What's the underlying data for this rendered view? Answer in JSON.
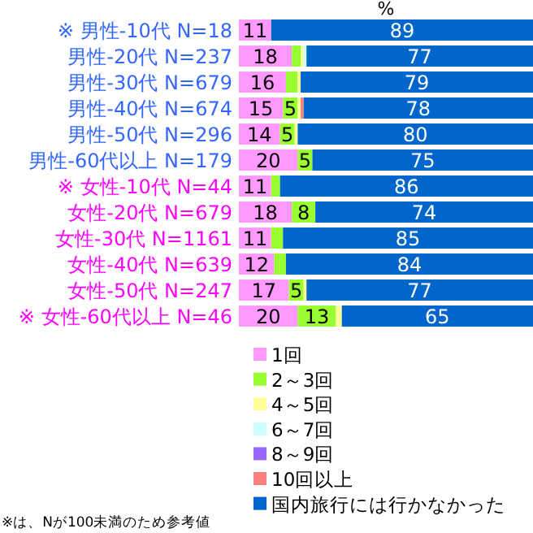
{
  "chart_data": {
    "type": "bar",
    "orientation": "horizontal",
    "stacked": true,
    "xlabel": "%",
    "xlim": [
      0,
      100
    ],
    "tick_labels": "y",
    "legend": "bottom right",
    "categories": [
      "※ 男性-10代 N=18",
      "男性-20代 N=237",
      "男性-30代 N=679",
      "男性-40代 N=674",
      "男性-50代 N=296",
      "男性-60代以上 N=179",
      "※ 女性-10代 N=44",
      "女性-20代 N=679",
      "女性-30代 N=1161",
      "女性-40代 N=639",
      "女性-50代 N=247",
      "※ 女性-60代以上 N=46"
    ],
    "series": [
      {
        "name": "1回",
        "color": "#ff99ff",
        "values": [
          11,
          18,
          16,
          15,
          14,
          20,
          11,
          18,
          11,
          12,
          17,
          20
        ],
        "value_labels": [
          "11",
          "18",
          "16",
          "15",
          "14",
          "20",
          "11",
          "18",
          "11",
          "12",
          "17",
          "20"
        ]
      },
      {
        "name": "2～3回",
        "color": "#99ff33",
        "values": [
          0,
          3,
          4,
          5,
          5,
          5,
          3,
          8,
          4,
          4,
          5,
          13
        ],
        "value_labels": [
          null,
          null,
          null,
          "5",
          "5",
          "5",
          null,
          "8",
          null,
          null,
          "5",
          "13"
        ]
      },
      {
        "name": "4～5回",
        "color": "#ffff99",
        "values": [
          0,
          1,
          1,
          1,
          1,
          0,
          0,
          0,
          0,
          0,
          1,
          2
        ]
      },
      {
        "name": "6～7回",
        "color": "#ccffff",
        "values": [
          0,
          1,
          0,
          0,
          0,
          0,
          0,
          0,
          0,
          0,
          0,
          0
        ]
      },
      {
        "name": "8～9回",
        "color": "#9966ff",
        "values": [
          0,
          0,
          0,
          0,
          0,
          0,
          0,
          0,
          0,
          0,
          0,
          0
        ]
      },
      {
        "name": "10回以上",
        "color": "#ff8080",
        "values": [
          0,
          0,
          0,
          1,
          0,
          0,
          0,
          0,
          0,
          0,
          0,
          0
        ]
      },
      {
        "name": "国内旅行には行かなかった",
        "color": "#0066cc",
        "values": [
          89,
          77,
          79,
          78,
          80,
          75,
          86,
          74,
          85,
          84,
          77,
          65
        ],
        "value_labels": [
          "89",
          "77",
          "79",
          "78",
          "80",
          "75",
          "86",
          "74",
          "85",
          "84",
          "77",
          "65"
        ]
      }
    ],
    "annotations": [
      "※は、Nが100未満のため参考値"
    ]
  }
}
